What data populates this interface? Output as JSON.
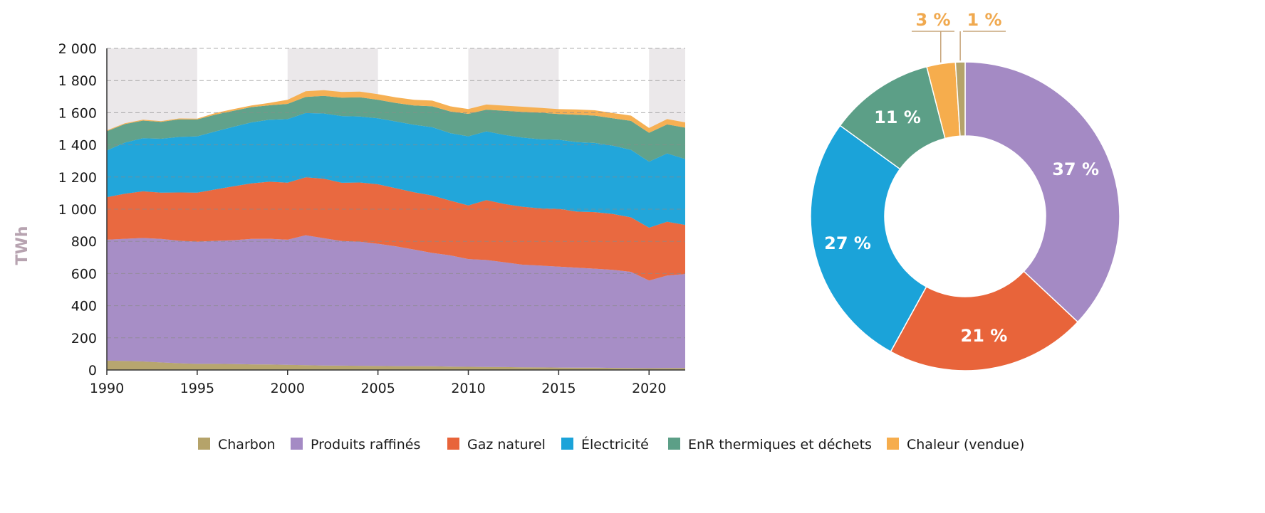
{
  "chart_data": [
    {
      "type": "area",
      "stacked": true,
      "title": "",
      "xlabel": "",
      "ylabel": "TWh",
      "xlim": [
        1990,
        2022
      ],
      "ylim": [
        0,
        2000
      ],
      "x_ticks": [
        "1990",
        "1995",
        "2000",
        "2005",
        "2010",
        "2015",
        "2020"
      ],
      "y_ticks": [
        "0",
        "200",
        "400",
        "600",
        "800",
        "1 000",
        "1 200",
        "1 400",
        "1 600",
        "1 800",
        "2 000"
      ],
      "grid": "horizontal dashed",
      "x": [
        1990,
        1991,
        1992,
        1993,
        1994,
        1995,
        1996,
        1997,
        1998,
        1999,
        2000,
        2001,
        2002,
        2003,
        2004,
        2005,
        2006,
        2007,
        2008,
        2009,
        2010,
        2011,
        2012,
        2013,
        2014,
        2015,
        2016,
        2017,
        2018,
        2019,
        2020,
        2021,
        2022
      ],
      "series": [
        {
          "name": "Charbon",
          "color": "#b5a36a",
          "values": [
            58,
            56,
            53,
            47,
            42,
            38,
            38,
            37,
            35,
            34,
            32,
            30,
            28,
            27,
            26,
            25,
            24,
            24,
            23,
            21,
            20,
            19,
            18,
            17,
            16,
            15,
            14,
            14,
            13,
            12,
            11,
            12,
            12
          ]
        },
        {
          "name": "Produits raffinés",
          "color": "#a48ac4",
          "values": [
            752,
            760,
            768,
            768,
            762,
            760,
            765,
            770,
            780,
            782,
            778,
            808,
            792,
            775,
            772,
            760,
            745,
            725,
            705,
            692,
            670,
            665,
            652,
            638,
            633,
            628,
            622,
            616,
            610,
            598,
            545,
            575,
            585
          ]
        },
        {
          "name": "Gaz naturel",
          "color": "#e8643a",
          "values": [
            265,
            280,
            290,
            288,
            300,
            305,
            320,
            335,
            345,
            355,
            355,
            360,
            370,
            362,
            368,
            370,
            361,
            356,
            357,
            340,
            333,
            372,
            362,
            360,
            356,
            359,
            349,
            352,
            347,
            339,
            329,
            335,
            305
          ]
        },
        {
          "name": "Électricité",
          "color": "#1ba3d9",
          "values": [
            290,
            318,
            330,
            335,
            345,
            350,
            360,
            370,
            380,
            385,
            395,
            400,
            405,
            415,
            410,
            410,
            415,
            420,
            425,
            420,
            430,
            428,
            430,
            430,
            430,
            430,
            432,
            430,
            425,
            420,
            410,
            425,
            410
          ]
        },
        {
          "name": "EnR thermiques et déchets",
          "color": "#5c9f87",
          "values": [
            120,
            115,
            110,
            105,
            110,
            105,
            105,
            100,
            95,
            90,
            95,
            100,
            110,
            115,
            120,
            115,
            115,
            120,
            130,
            135,
            140,
            135,
            150,
            160,
            165,
            160,
            170,
            170,
            170,
            180,
            180,
            180,
            195
          ]
        },
        {
          "name": "Chaleur (vendue)",
          "color": "#f6ad4d",
          "values": [
            5,
            5,
            5,
            5,
            5,
            5,
            10,
            10,
            10,
            15,
            25,
            35,
            35,
            35,
            35,
            35,
            35,
            35,
            35,
            32,
            30,
            32,
            32,
            32,
            30,
            30,
            33,
            33,
            33,
            33,
            30,
            33,
            33
          ]
        }
      ]
    },
    {
      "type": "pie",
      "donut": true,
      "title": "",
      "slices": [
        {
          "name": "Produits raffinés",
          "value": 37,
          "label": "37 %",
          "color": "#a48ac4"
        },
        {
          "name": "Gaz naturel",
          "value": 21,
          "label": "21 %",
          "color": "#e8643a"
        },
        {
          "name": "Électricité",
          "value": 27,
          "label": "27 %",
          "color": "#1ba3d9"
        },
        {
          "name": "EnR thermiques et déchets",
          "value": 11,
          "label": "11 %",
          "color": "#5c9f87"
        },
        {
          "name": "Chaleur (vendue)",
          "value": 3,
          "label": "3 %",
          "color": "#f6ad4d"
        },
        {
          "name": "Charbon",
          "value": 1,
          "label": "1 %",
          "color": "#b5a36a"
        }
      ],
      "outside_label_color": "#f0a94f"
    }
  ],
  "legend": {
    "placement": "bottom",
    "items": [
      {
        "label": "Charbon",
        "color": "#b5a36a"
      },
      {
        "label": "Produits raffinés",
        "color": "#a48ac4"
      },
      {
        "label": "Gaz naturel",
        "color": "#e8643a"
      },
      {
        "label": "Électricité",
        "color": "#1ba3d9"
      },
      {
        "label": "EnR thermiques et déchets",
        "color": "#5c9f87"
      },
      {
        "label": "Chaleur (vendue)",
        "color": "#f6ad4d"
      }
    ]
  }
}
